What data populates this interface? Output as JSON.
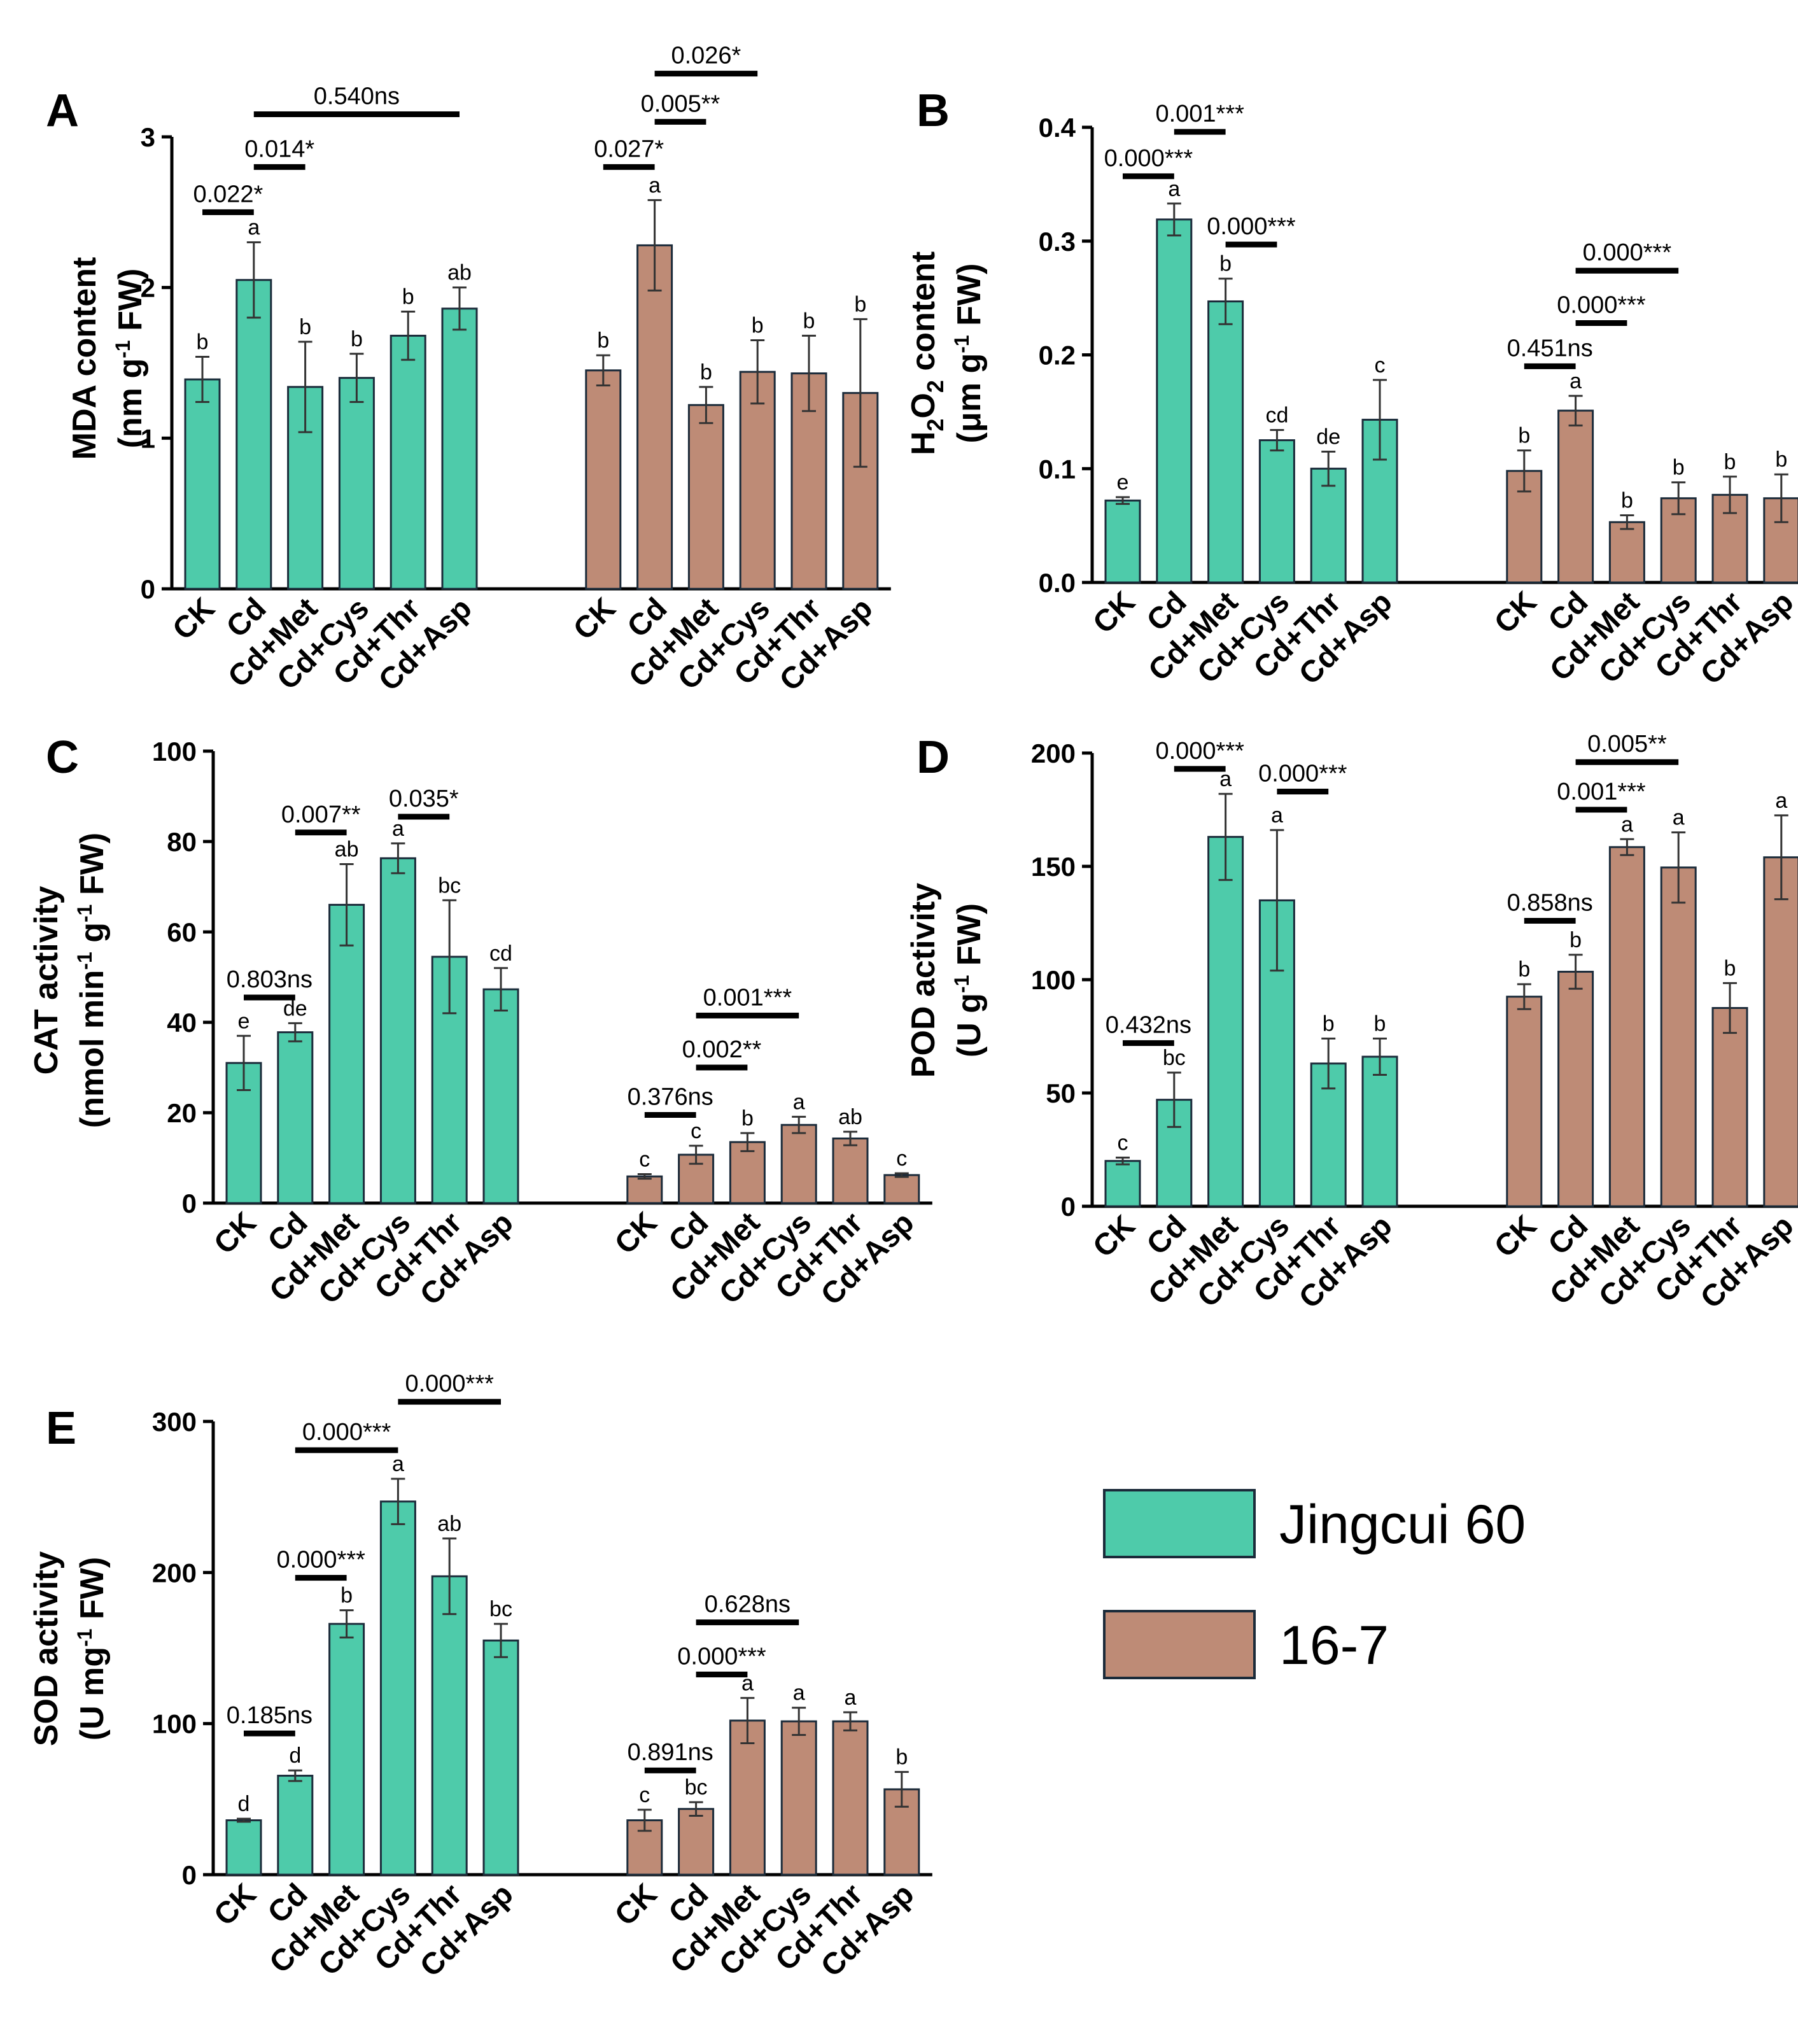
{
  "colors": {
    "jingcui": "#4ECBAA",
    "line167": "#BE8B76",
    "stroke": "#1b2b3a"
  },
  "legend": {
    "items": [
      {
        "label": "Jingcui 60",
        "color": "#4ECBAA"
      },
      {
        "label": "16-7",
        "color": "#BE8B76"
      }
    ]
  },
  "chart_data": [
    {
      "panel": "A",
      "type": "bar",
      "ylabel_line1": "MDA content",
      "ylabel_line2": "(nm g-1 FW)",
      "ylim": [
        0,
        3
      ],
      "yticks": [
        "0",
        "1",
        "2",
        "3"
      ],
      "categories": [
        "CK",
        "Cd",
        "Cd+Met",
        "Cd+Cys",
        "Cd+Thr",
        "Cd+Asp"
      ],
      "series": [
        {
          "name": "Jingcui 60",
          "values": [
            1.39,
            2.05,
            1.34,
            1.4,
            1.68,
            1.86
          ],
          "errors": [
            0.15,
            0.25,
            0.3,
            0.16,
            0.16,
            0.14
          ],
          "letters": [
            "b",
            "a",
            "b",
            "b",
            "b",
            "ab"
          ]
        },
        {
          "name": "16-7",
          "values": [
            1.45,
            2.28,
            1.22,
            1.44,
            1.43,
            1.3
          ],
          "errors": [
            0.1,
            0.3,
            0.12,
            0.21,
            0.25,
            0.49
          ],
          "letters": [
            "b",
            "a",
            "b",
            "b",
            "b",
            "b"
          ]
        }
      ],
      "sig": [
        {
          "label": "0.022*",
          "group": 0,
          "from": 0,
          "to": 1,
          "y": 2.5
        },
        {
          "label": "0.014*",
          "group": 0,
          "from": 1,
          "to": 2,
          "y": 2.8
        },
        {
          "label": "0.540ns",
          "group": 0,
          "from": 1,
          "to": 5,
          "y": 3.15
        },
        {
          "label": "0.027*",
          "group": 1,
          "from": 0,
          "to": 1,
          "y": 2.8
        },
        {
          "label": "0.005**",
          "group": 1,
          "from": 1,
          "to": 2,
          "y": 3.1
        },
        {
          "label": "0.026*",
          "group": 1,
          "from": 1,
          "to": 3,
          "y": 3.42
        }
      ]
    },
    {
      "panel": "B",
      "type": "bar",
      "ylabel_line1": "H2O2 content",
      "ylabel_line2": "(μm g-1 FW)",
      "ylim": [
        0,
        0.4
      ],
      "yticks": [
        "0.0",
        "0.1",
        "0.2",
        "0.3",
        "0.4"
      ],
      "categories": [
        "CK",
        "Cd",
        "Cd+Met",
        "Cd+Cys",
        "Cd+Thr",
        "Cd+Asp"
      ],
      "series": [
        {
          "name": "Jingcui 60",
          "values": [
            0.072,
            0.319,
            0.247,
            0.125,
            0.1,
            0.143
          ],
          "errors": [
            0.003,
            0.014,
            0.02,
            0.009,
            0.015,
            0.035
          ],
          "letters": [
            "e",
            "a",
            "b",
            "cd",
            "de",
            "c"
          ]
        },
        {
          "name": "16-7",
          "values": [
            0.098,
            0.151,
            0.053,
            0.074,
            0.077,
            0.074
          ],
          "errors": [
            0.018,
            0.013,
            0.006,
            0.014,
            0.016,
            0.021
          ],
          "letters": [
            "b",
            "a",
            "b",
            "b",
            "b",
            "b"
          ]
        }
      ],
      "sig": [
        {
          "label": "0.000***",
          "group": 0,
          "from": 0,
          "to": 1,
          "y": 0.357
        },
        {
          "label": "0.001***",
          "group": 0,
          "from": 1,
          "to": 2,
          "y": 0.396
        },
        {
          "label": "0.000***",
          "group": 0,
          "from": 2,
          "to": 3,
          "y": 0.297
        },
        {
          "label": "0.451ns",
          "group": 1,
          "from": 0,
          "to": 1,
          "y": 0.19
        },
        {
          "label": "0.000***",
          "group": 1,
          "from": 1,
          "to": 2,
          "y": 0.228
        },
        {
          "label": "0.000***",
          "group": 1,
          "from": 1,
          "to": 3,
          "y": 0.274
        }
      ]
    },
    {
      "panel": "C",
      "type": "bar",
      "ylabel_line1": "CAT activity",
      "ylabel_line2": "(nmol min-1 g-1 FW)",
      "ylim": [
        0,
        100
      ],
      "yticks": [
        "0",
        "20",
        "40",
        "60",
        "80",
        "100"
      ],
      "categories": [
        "CK",
        "Cd",
        "Cd+Met",
        "Cd+Cys",
        "Cd+Thr",
        "Cd+Asp"
      ],
      "series": [
        {
          "name": "Jingcui 60",
          "values": [
            31.0,
            37.8,
            66.0,
            76.3,
            54.5,
            47.3
          ],
          "errors": [
            6.0,
            2.0,
            9.0,
            3.3,
            12.5,
            4.7
          ],
          "letters": [
            "e",
            "de",
            "ab",
            "a",
            "bc",
            "cd"
          ]
        },
        {
          "name": "16-7",
          "values": [
            5.9,
            10.7,
            13.5,
            17.3,
            14.3,
            6.2
          ],
          "errors": [
            0.5,
            2.0,
            2.0,
            1.8,
            1.5,
            0.4
          ],
          "letters": [
            "c",
            "c",
            "b",
            "a",
            "ab",
            "c"
          ]
        }
      ],
      "sig": [
        {
          "label": "0.803ns",
          "group": 0,
          "from": 0,
          "to": 1,
          "y": 45.5
        },
        {
          "label": "0.007**",
          "group": 0,
          "from": 1,
          "to": 2,
          "y": 82.0
        },
        {
          "label": "0.035*",
          "group": 0,
          "from": 3,
          "to": 4,
          "y": 85.5
        },
        {
          "label": "0.376ns",
          "group": 1,
          "from": 0,
          "to": 1,
          "y": 19.5
        },
        {
          "label": "0.002**",
          "group": 1,
          "from": 1,
          "to": 2,
          "y": 30.0
        },
        {
          "label": "0.001***",
          "group": 1,
          "from": 1,
          "to": 3,
          "y": 41.5
        }
      ]
    },
    {
      "panel": "D",
      "type": "bar",
      "ylabel_line1": "POD activity",
      "ylabel_line2": "(U g-1 FW)",
      "ylim": [
        0,
        200
      ],
      "yticks": [
        "0",
        "50",
        "100",
        "150",
        "200"
      ],
      "categories": [
        "CK",
        "Cd",
        "Cd+Met",
        "Cd+Cys",
        "Cd+Thr",
        "Cd+Asp"
      ],
      "series": [
        {
          "name": "Jingcui 60",
          "values": [
            20.0,
            47.0,
            163.0,
            135.0,
            63.0,
            66.0
          ],
          "errors": [
            1.5,
            12.0,
            19.0,
            31.0,
            11.0,
            8.0
          ],
          "letters": [
            "c",
            "bc",
            "a",
            "a",
            "b",
            "b"
          ]
        },
        {
          "name": "16-7",
          "values": [
            92.5,
            103.5,
            158.5,
            149.5,
            87.5,
            154.0
          ],
          "errors": [
            5.5,
            7.5,
            3.5,
            15.5,
            11.0,
            18.5
          ],
          "letters": [
            "b",
            "b",
            "a",
            "a",
            "b",
            "a"
          ]
        }
      ],
      "sig": [
        {
          "label": "0.432ns",
          "group": 0,
          "from": 0,
          "to": 1,
          "y": 72.0
        },
        {
          "label": "0.000***",
          "group": 0,
          "from": 1,
          "to": 2,
          "y": 193.0
        },
        {
          "label": "0.000***",
          "group": 0,
          "from": 3,
          "to": 4,
          "y": 183.0
        },
        {
          "label": "0.858ns",
          "group": 1,
          "from": 0,
          "to": 1,
          "y": 126.0
        },
        {
          "label": "0.001***",
          "group": 1,
          "from": 1,
          "to": 2,
          "y": 175.0
        },
        {
          "label": "0.005**",
          "group": 1,
          "from": 1,
          "to": 3,
          "y": 196.0
        }
      ]
    },
    {
      "panel": "E",
      "type": "bar",
      "ylabel_line1": "SOD activity",
      "ylabel_line2": "(U mg-1 FW)",
      "ylim": [
        0,
        300
      ],
      "yticks": [
        "0",
        "100",
        "200",
        "300"
      ],
      "categories": [
        "CK",
        "Cd",
        "Cd+Met",
        "Cd+Cys",
        "Cd+Thr",
        "Cd+Asp"
      ],
      "series": [
        {
          "name": "Jingcui 60",
          "values": [
            36.0,
            65.5,
            166.0,
            247.0,
            197.5,
            155.0
          ],
          "errors": [
            1.0,
            3.5,
            9.0,
            15.0,
            25.0,
            11.0
          ],
          "letters": [
            "d",
            "d",
            "b",
            "a",
            "ab",
            "bc"
          ]
        },
        {
          "name": "16-7",
          "values": [
            36.0,
            43.5,
            102.0,
            101.5,
            101.5,
            56.5
          ],
          "errors": [
            7.0,
            4.5,
            15.0,
            9.0,
            6.0,
            11.5
          ],
          "letters": [
            "c",
            "bc",
            "a",
            "a",
            "a",
            "b"
          ]
        }
      ],
      "sig": [
        {
          "label": "0.185ns",
          "group": 0,
          "from": 0,
          "to": 1,
          "y": 93.5
        },
        {
          "label": "0.000***",
          "group": 0,
          "from": 1,
          "to": 2,
          "y": 196.5
        },
        {
          "label": "0.000***",
          "group": 0,
          "from": 1,
          "to": 3,
          "y": 281.0
        },
        {
          "label": "0.000***",
          "group": 0,
          "from": 3,
          "to": 5,
          "y": 313.0
        },
        {
          "label": "0.891ns",
          "group": 1,
          "from": 0,
          "to": 1,
          "y": 69.0
        },
        {
          "label": "0.000***",
          "group": 1,
          "from": 1,
          "to": 2,
          "y": 132.5
        },
        {
          "label": "0.628ns",
          "group": 1,
          "from": 1,
          "to": 3,
          "y": 167.0
        }
      ]
    }
  ]
}
